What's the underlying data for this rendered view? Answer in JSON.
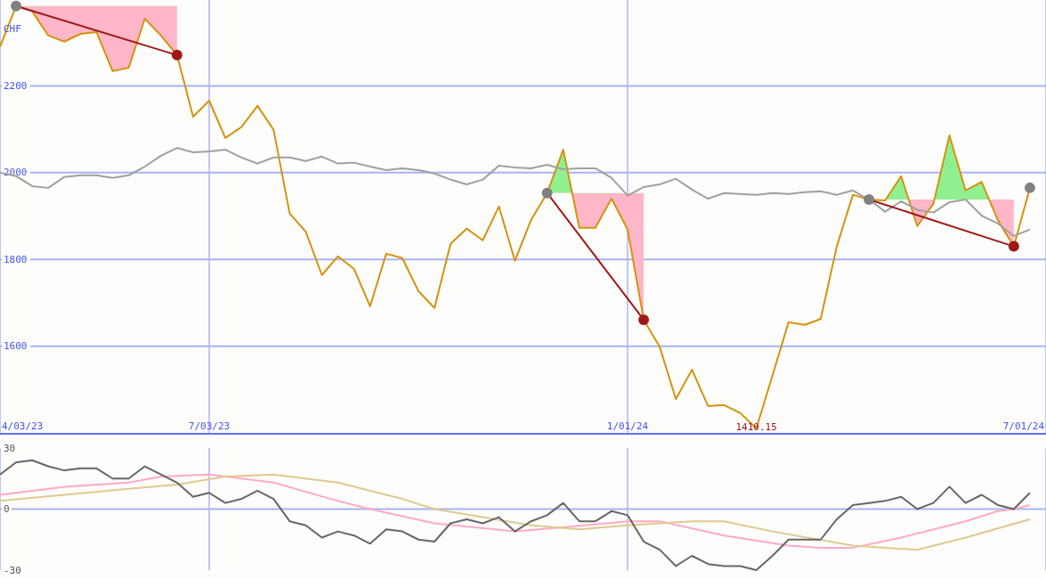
{
  "chart_data": [
    {
      "type": "line",
      "ylabel": "CHF",
      "xlim": [
        "2023-04-03",
        "2024-07-01"
      ],
      "ylim": [
        1398,
        2398
      ],
      "yticks": [
        1600,
        1800,
        2000,
        2200
      ],
      "xticks": [
        {
          "value": "2023-04-03",
          "label": "4/03/23"
        },
        {
          "value": "2023-07-03",
          "label": "7/03/23"
        },
        {
          "value": "2024-01-01",
          "label": "1/01/24"
        },
        {
          "value": "2024-07-01",
          "label": "7/01/24"
        }
      ],
      "grid": true,
      "annotations": [
        {
          "text": "1410.15",
          "x": "2024-02-26",
          "y": 1410.15
        }
      ],
      "x": [
        "2023-04-03",
        "2023-04-10",
        "2023-04-17",
        "2023-04-24",
        "2023-05-01",
        "2023-05-08",
        "2023-05-15",
        "2023-05-22",
        "2023-05-29",
        "2023-06-05",
        "2023-06-12",
        "2023-06-19",
        "2023-06-26",
        "2023-07-03",
        "2023-07-10",
        "2023-07-17",
        "2023-07-24",
        "2023-07-31",
        "2023-08-07",
        "2023-08-14",
        "2023-08-21",
        "2023-08-28",
        "2023-09-04",
        "2023-09-11",
        "2023-09-18",
        "2023-09-25",
        "2023-10-02",
        "2023-10-09",
        "2023-10-16",
        "2023-10-23",
        "2023-10-30",
        "2023-11-06",
        "2023-11-13",
        "2023-11-20",
        "2023-11-27",
        "2023-12-04",
        "2023-12-11",
        "2023-12-18",
        "2023-12-25",
        "2024-01-01",
        "2024-01-08",
        "2024-01-15",
        "2024-01-22",
        "2024-01-29",
        "2024-02-05",
        "2024-02-12",
        "2024-02-19",
        "2024-02-26",
        "2024-03-04",
        "2024-03-11",
        "2024-03-18",
        "2024-03-25",
        "2024-04-01",
        "2024-04-08",
        "2024-04-15",
        "2024-04-22",
        "2024-04-29",
        "2024-05-06",
        "2024-05-13",
        "2024-05-20",
        "2024-05-27",
        "2024-06-03",
        "2024-06-10",
        "2024-06-17",
        "2024-06-24"
      ],
      "series": [
        {
          "type": "line",
          "color": "#d4920e",
          "values": [
            2290,
            2384,
            2372,
            2316,
            2302,
            2320,
            2324,
            2234,
            2242,
            2355,
            2316,
            2271,
            2129,
            2166,
            2080,
            2105,
            2154,
            2099,
            1906,
            1864,
            1764,
            1807,
            1778,
            1692,
            1813,
            1803,
            1727,
            1688,
            1836,
            1871,
            1844,
            1922,
            1797,
            1891,
            1953,
            2053,
            1873,
            1873,
            1940,
            1869,
            1661,
            1598,
            1478,
            1546,
            1462,
            1464,
            1446,
            1410.15,
            1532,
            1655,
            1649,
            1663,
            1830,
            1949,
            1938,
            1936,
            1992,
            1877,
            1928,
            2086,
            1959,
            1979,
            1891,
            1830,
            1965
          ]
        },
        {
          "type": "line",
          "color": "#a0a0a0",
          "values": [
            2000,
            1992,
            1969,
            1965,
            1990,
            1994,
            1994,
            1988,
            1994,
            2014,
            2039,
            2057,
            2047,
            2049,
            2053,
            2035,
            2021,
            2035,
            2035,
            2027,
            2037,
            2021,
            2023,
            2014,
            2006,
            2010,
            2006,
            1998,
            1984,
            1973,
            1984,
            2016,
            2012,
            2010,
            2018,
            2008,
            2010,
            2010,
            1988,
            1947,
            1967,
            1973,
            1986,
            1961,
            1940,
            1953,
            1951,
            1949,
            1953,
            1951,
            1955,
            1957,
            1949,
            1959,
            1938,
            1910,
            1934,
            1914,
            1908,
            1932,
            1938,
            1901,
            1883,
            1854,
            1869
          ]
        },
        {
          "type": "line",
          "color": "#a01818",
          "marker": "circle",
          "x": [
            "2023-04-10",
            "2023-06-19"
          ],
          "values": [
            2384,
            2271
          ],
          "colors": [
            "#808080",
            "#a01818"
          ]
        },
        {
          "type": "line",
          "color": "#a01818",
          "marker": "circle",
          "x": [
            "2023-11-27",
            "2024-01-08"
          ],
          "values": [
            1953,
            1661
          ],
          "colors": [
            "#808080",
            "#a01818"
          ]
        },
        {
          "type": "line",
          "color": "#a01818",
          "marker": "circle",
          "x": [
            "2024-04-15",
            "2024-06-17"
          ],
          "values": [
            1938,
            1830
          ],
          "colors": [
            "#808080",
            "#a01818"
          ]
        },
        {
          "type": "scatter",
          "color": "#808080",
          "marker": "circle",
          "x": [
            "2024-06-24"
          ],
          "values": [
            1965
          ]
        }
      ]
    },
    {
      "type": "line",
      "xlim": [
        "2023-04-03",
        "2024-07-01"
      ],
      "ylim": [
        -30,
        30
      ],
      "yticks": [
        -30,
        0,
        30
      ],
      "tick_labels": "y",
      "grid": "x",
      "ref_lines": [
        {
          "axis": "y",
          "value": 0,
          "color": "#a8b4f0"
        }
      ],
      "xticks": [
        {
          "value": "2023-04-03",
          "label": null
        },
        {
          "value": "2023-07-03",
          "label": null
        },
        {
          "value": "2024-01-01",
          "label": null
        },
        {
          "value": "2024-07-01",
          "label": null
        }
      ],
      "x": [
        "2023-04-03",
        "2023-04-10",
        "2023-04-17",
        "2023-04-24",
        "2023-05-01",
        "2023-05-08",
        "2023-05-15",
        "2023-05-22",
        "2023-05-29",
        "2023-06-05",
        "2023-06-12",
        "2023-06-19",
        "2023-06-26",
        "2023-07-03",
        "2023-07-10",
        "2023-07-17",
        "2023-07-24",
        "2023-07-31",
        "2023-08-07",
        "2023-08-14",
        "2023-08-21",
        "2023-08-28",
        "2023-09-04",
        "2023-09-11",
        "2023-09-18",
        "2023-09-25",
        "2023-10-02",
        "2023-10-09",
        "2023-10-16",
        "2023-10-23",
        "2023-10-30",
        "2023-11-06",
        "2023-11-13",
        "2023-11-20",
        "2023-11-27",
        "2023-12-04",
        "2023-12-11",
        "2023-12-18",
        "2023-12-25",
        "2024-01-01",
        "2024-01-08",
        "2024-01-15",
        "2024-01-22",
        "2024-01-29",
        "2024-02-05",
        "2024-02-12",
        "2024-02-19",
        "2024-02-26",
        "2024-03-04",
        "2024-03-11",
        "2024-03-18",
        "2024-03-25",
        "2024-04-01",
        "2024-04-08",
        "2024-04-15",
        "2024-04-22",
        "2024-04-29",
        "2024-05-06",
        "2024-05-13",
        "2024-05-20",
        "2024-05-27",
        "2024-06-03",
        "2024-06-10",
        "2024-06-17",
        "2024-06-24"
      ],
      "series": [
        {
          "type": "line",
          "color": "#ffaac4",
          "x": [
            "2023-04-03",
            "2023-05-01",
            "2023-05-29",
            "2023-06-12",
            "2023-07-03",
            "2023-07-31",
            "2023-08-28",
            "2023-09-11",
            "2023-10-09",
            "2023-11-13",
            "2023-12-04",
            "2024-01-01",
            "2024-01-15",
            "2024-02-12",
            "2024-03-11",
            "2024-03-25",
            "2024-04-08",
            "2024-04-29",
            "2024-05-27",
            "2024-06-10",
            "2024-06-17",
            "2024-06-24"
          ],
          "values": [
            7,
            11,
            13,
            16,
            17,
            13,
            4,
            0,
            -7,
            -11,
            -9,
            -6,
            -6,
            -13,
            -18,
            -19,
            -19,
            -14,
            -6,
            -1,
            0,
            2
          ]
        },
        {
          "type": "line",
          "color": "#e0c890",
          "x": [
            "2023-04-03",
            "2023-05-01",
            "2023-05-29",
            "2023-06-19",
            "2023-07-10",
            "2023-07-31",
            "2023-08-28",
            "2023-09-25",
            "2023-10-09",
            "2023-11-20",
            "2023-12-11",
            "2024-01-01",
            "2024-01-29",
            "2024-02-12",
            "2024-03-04",
            "2024-04-08",
            "2024-05-06",
            "2024-05-27",
            "2024-06-24"
          ],
          "values": [
            4,
            7,
            10,
            12,
            16,
            17,
            13,
            5,
            0,
            -8,
            -10,
            -8,
            -6,
            -6,
            -11,
            -18,
            -20,
            -14,
            -5
          ]
        },
        {
          "type": "line",
          "color": "#666666",
          "values": [
            17,
            23,
            24,
            21,
            19,
            20,
            20,
            15,
            15,
            21,
            17,
            13,
            6,
            8,
            3,
            5,
            9,
            5,
            -6,
            -8,
            -14,
            -11,
            -13,
            -17,
            -10,
            -11,
            -15,
            -16,
            -7,
            -5,
            -7,
            -4,
            -11,
            -6,
            -3,
            3,
            -6,
            -6,
            -1,
            -3,
            -16,
            -20,
            -28,
            -23,
            -27,
            -28,
            -28,
            -30,
            -23,
            -15,
            -15,
            -15,
            -5,
            2,
            3,
            4,
            6,
            0,
            3,
            11,
            3,
            7,
            2,
            0,
            8
          ]
        }
      ]
    }
  ]
}
